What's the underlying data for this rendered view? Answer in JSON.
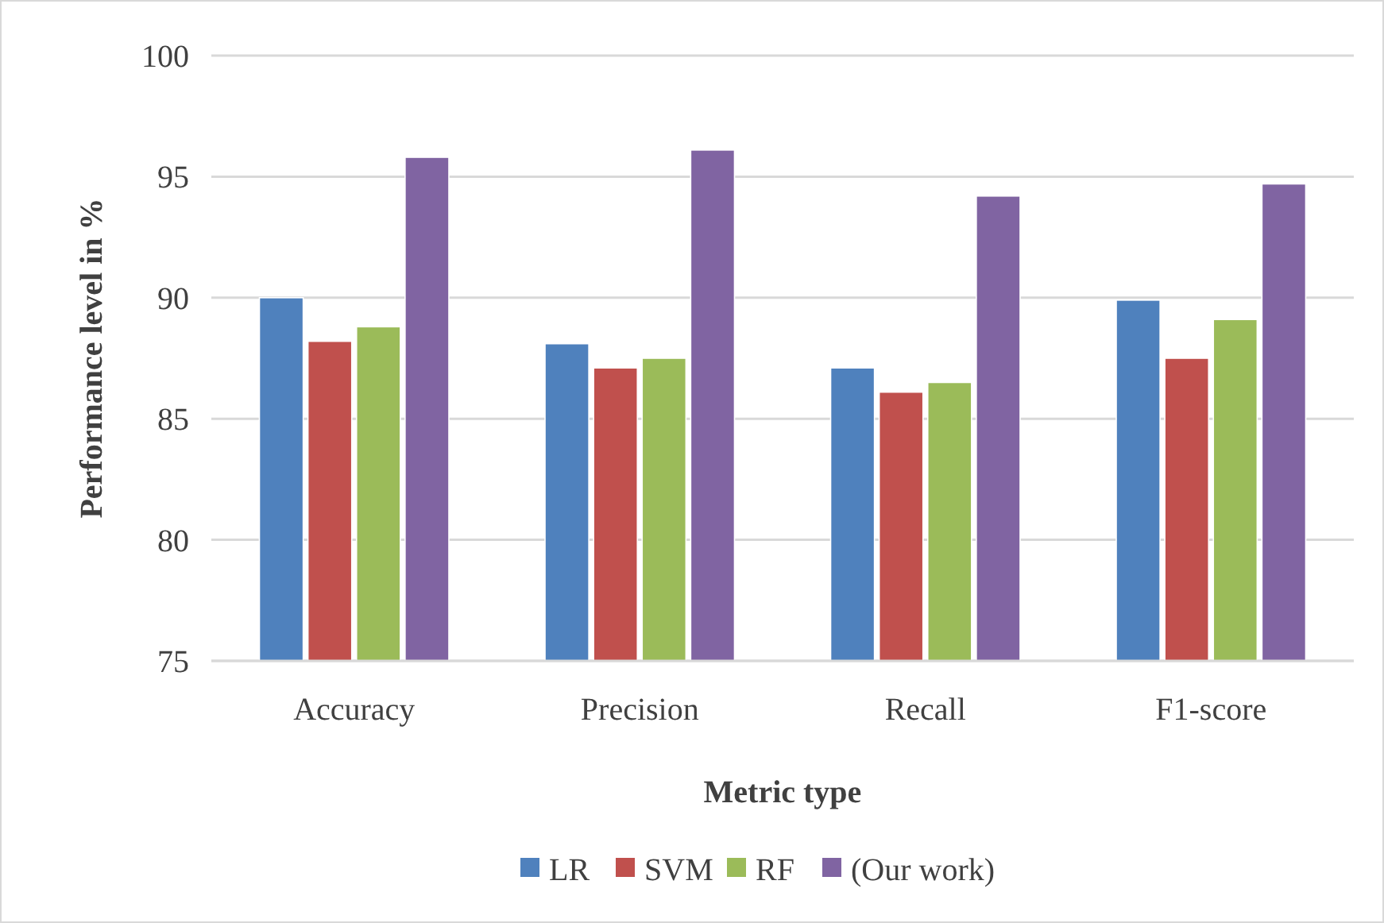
{
  "chart_data": {
    "type": "bar",
    "xlabel": "Metric type",
    "ylabel": "Performance level in %",
    "categories": [
      "Accuracy",
      "Precision",
      "Recall",
      "F1-score"
    ],
    "series": [
      {
        "name": "LR",
        "color": "#4f81bd",
        "values": [
          90.0,
          88.1,
          87.1,
          89.9
        ]
      },
      {
        "name": "SVM",
        "color": "#c0504d",
        "values": [
          88.2,
          87.1,
          86.1,
          87.5
        ]
      },
      {
        "name": "RF",
        "color": "#9bbb59",
        "values": [
          88.8,
          87.5,
          86.5,
          89.1
        ]
      },
      {
        "name": "(Our work)",
        "color": "#8064a2",
        "values": [
          95.8,
          96.1,
          94.2,
          94.7
        ]
      }
    ],
    "ylim": [
      75,
      100
    ],
    "yticks": [
      75,
      80,
      85,
      90,
      95,
      100
    ],
    "grid": "y",
    "legend": "bottom"
  }
}
